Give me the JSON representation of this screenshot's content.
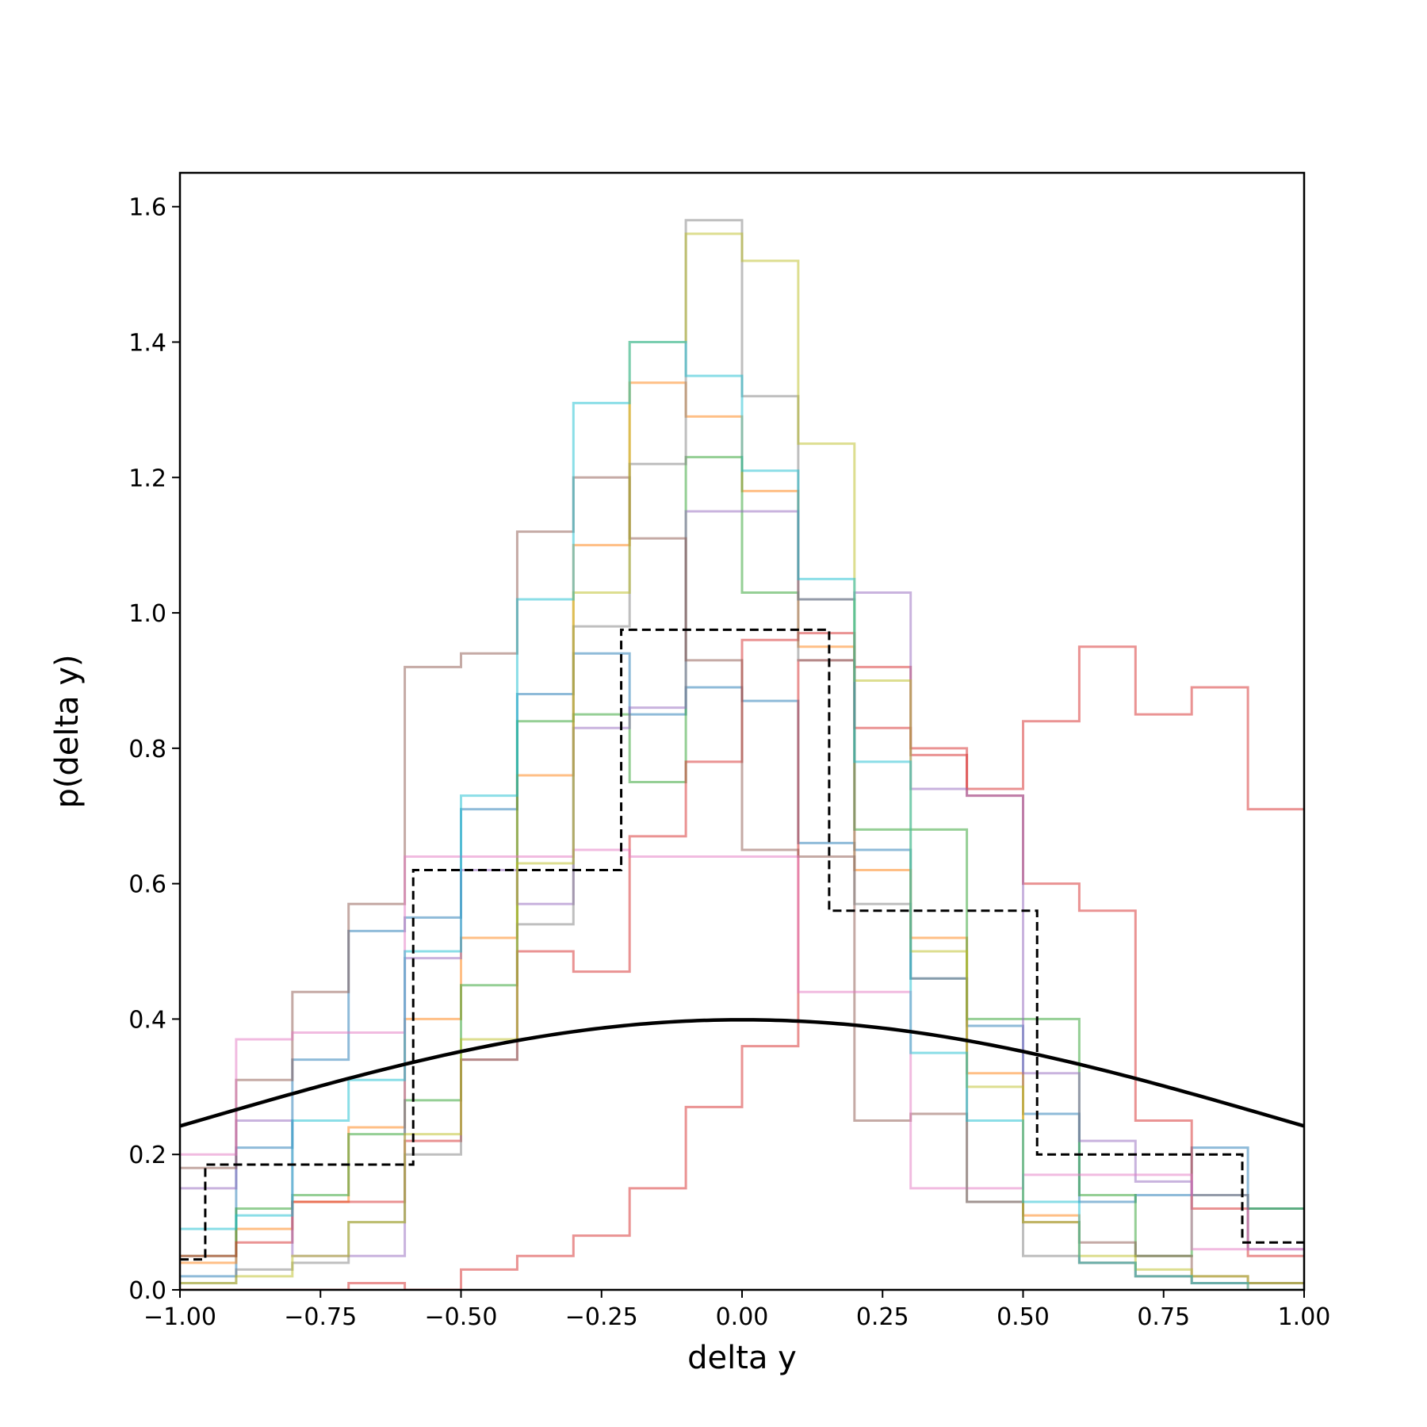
{
  "chart_data": {
    "type": "histogram-step",
    "title": "",
    "xlabel": "delta y",
    "ylabel": "p(delta y)",
    "xlim": [
      -1.0,
      1.0
    ],
    "ylim": [
      0.0,
      1.65
    ],
    "xticks": [
      -1.0,
      -0.75,
      -0.5,
      -0.25,
      0.0,
      0.25,
      0.5,
      0.75,
      1.0
    ],
    "xtick_labels": [
      "−1.00",
      "−0.75",
      "−0.50",
      "−0.25",
      "0.00",
      "0.25",
      "0.50",
      "0.75",
      "1.00"
    ],
    "yticks": [
      0.0,
      0.2,
      0.4,
      0.6,
      0.8,
      1.0,
      1.2,
      1.4,
      1.6
    ],
    "ytick_labels": [
      "0.0",
      "0.2",
      "0.4",
      "0.6",
      "0.8",
      "1.0",
      "1.2",
      "1.4",
      "1.6"
    ],
    "grid": false,
    "legend": "none",
    "curve": {
      "kind": "normal-pdf",
      "mean": 0.0,
      "std": 1.0,
      "color": "#000000"
    },
    "series": [
      {
        "color": "#1f77b4",
        "style": "solid",
        "edges": [
          -1.0,
          -0.9,
          -0.8,
          -0.7,
          -0.6,
          -0.5,
          -0.4,
          -0.3,
          -0.2,
          -0.1,
          0.0,
          0.1,
          0.2,
          0.3,
          0.4,
          0.5,
          0.6,
          0.7,
          0.8,
          0.9,
          1.0
        ],
        "values": [
          0.02,
          0.21,
          0.34,
          0.53,
          0.55,
          0.71,
          0.88,
          0.94,
          0.85,
          0.89,
          0.87,
          0.66,
          0.65,
          0.46,
          0.39,
          0.26,
          0.13,
          0.14,
          0.21,
          0.12
        ]
      },
      {
        "color": "#ff7f0e",
        "style": "solid",
        "edges": [
          -1.0,
          -0.9,
          -0.8,
          -0.7,
          -0.6,
          -0.5,
          -0.4,
          -0.3,
          -0.2,
          -0.1,
          0.0,
          0.1,
          0.2,
          0.3,
          0.4,
          0.5,
          0.6,
          0.7,
          0.8,
          0.9,
          1.0
        ],
        "values": [
          0.04,
          0.09,
          0.13,
          0.24,
          0.4,
          0.52,
          0.76,
          1.1,
          1.34,
          1.29,
          1.18,
          0.95,
          0.62,
          0.52,
          0.32,
          0.11,
          0.04,
          0.02,
          0.01,
          0.0
        ]
      },
      {
        "color": "#2ca02c",
        "style": "solid",
        "edges": [
          -1.0,
          -0.9,
          -0.8,
          -0.7,
          -0.6,
          -0.5,
          -0.4,
          -0.3,
          -0.2,
          -0.1,
          0.0,
          0.1,
          0.2,
          0.3,
          0.4,
          0.5,
          0.6,
          0.7,
          0.8,
          0.9,
          1.0
        ],
        "values": [
          0.05,
          0.12,
          0.14,
          0.23,
          0.28,
          0.45,
          0.84,
          0.85,
          0.75,
          1.23,
          1.03,
          1.02,
          0.68,
          0.68,
          0.4,
          0.4,
          0.14,
          0.05,
          0.14,
          0.12
        ]
      },
      {
        "color": "#d62728",
        "style": "solid",
        "edges": [
          -1.0,
          -0.9,
          -0.8,
          -0.7,
          -0.6,
          -0.5,
          -0.4,
          -0.3,
          -0.2,
          -0.1,
          0.0,
          0.1,
          0.2,
          0.3,
          0.4,
          0.5,
          0.6,
          0.7,
          0.8,
          0.9,
          1.0
        ],
        "values": [
          0.0,
          0.0,
          0.0,
          0.01,
          0.0,
          0.03,
          0.05,
          0.08,
          0.15,
          0.27,
          0.36,
          0.93,
          0.83,
          0.8,
          0.74,
          0.84,
          0.95,
          0.85,
          0.89,
          0.71
        ]
      },
      {
        "color": "#d62728",
        "style": "solid",
        "edges": [
          -1.0,
          -0.9,
          -0.8,
          -0.7,
          -0.6,
          -0.5,
          -0.4,
          -0.3,
          -0.2,
          -0.1,
          0.0,
          0.1,
          0.2,
          0.3,
          0.4,
          0.5,
          0.6,
          0.7,
          0.8,
          0.9,
          1.0
        ],
        "values": [
          0.05,
          0.07,
          0.13,
          0.13,
          0.22,
          0.34,
          0.5,
          0.47,
          0.67,
          0.78,
          0.96,
          0.97,
          0.92,
          0.79,
          0.73,
          0.6,
          0.56,
          0.25,
          0.12,
          0.05
        ]
      },
      {
        "color": "#9467bd",
        "style": "solid",
        "edges": [
          -1.0,
          -0.9,
          -0.8,
          -0.7,
          -0.6,
          -0.5,
          -0.4,
          -0.3,
          -0.2,
          -0.1,
          0.0,
          0.1,
          0.2,
          0.3,
          0.4,
          0.5,
          0.6,
          0.7,
          0.8,
          0.9,
          1.0
        ],
        "values": [
          0.15,
          0.25,
          0.05,
          0.05,
          0.49,
          0.62,
          0.57,
          0.83,
          0.86,
          1.15,
          1.15,
          1.02,
          1.03,
          0.74,
          0.73,
          0.32,
          0.22,
          0.16,
          0.14,
          0.06
        ]
      },
      {
        "color": "#8c564b",
        "style": "solid",
        "edges": [
          -1.0,
          -0.9,
          -0.8,
          -0.7,
          -0.6,
          -0.5,
          -0.4,
          -0.3,
          -0.2,
          -0.1,
          0.0,
          0.1,
          0.2,
          0.3,
          0.4,
          0.5,
          0.6,
          0.7,
          0.8,
          0.9,
          1.0
        ],
        "values": [
          0.18,
          0.31,
          0.44,
          0.57,
          0.92,
          0.94,
          1.12,
          1.2,
          1.11,
          0.93,
          0.65,
          0.64,
          0.25,
          0.26,
          0.13,
          0.1,
          0.07,
          0.05,
          0.02,
          0.01
        ]
      },
      {
        "color": "#e377c2",
        "style": "solid",
        "edges": [
          -1.0,
          -0.9,
          -0.8,
          -0.7,
          -0.6,
          -0.5,
          -0.4,
          -0.3,
          -0.2,
          -0.1,
          0.0,
          0.1,
          0.2,
          0.3,
          0.4,
          0.5,
          0.6,
          0.7,
          0.8,
          0.9,
          1.0
        ],
        "values": [
          0.2,
          0.37,
          0.38,
          0.38,
          0.64,
          0.64,
          0.64,
          0.65,
          0.64,
          0.64,
          0.64,
          0.44,
          0.44,
          0.15,
          0.15,
          0.17,
          0.17,
          0.17,
          0.06,
          0.06
        ]
      },
      {
        "color": "#7f7f7f",
        "style": "solid",
        "edges": [
          -1.0,
          -0.9,
          -0.8,
          -0.7,
          -0.6,
          -0.5,
          -0.4,
          -0.3,
          -0.2,
          -0.1,
          0.0,
          0.1,
          0.2,
          0.3,
          0.4,
          0.5,
          0.6,
          0.7,
          0.8,
          0.9,
          1.0
        ],
        "values": [
          0.01,
          0.03,
          0.04,
          0.1,
          0.2,
          0.34,
          0.54,
          0.98,
          1.22,
          1.58,
          1.32,
          0.93,
          0.57,
          0.46,
          0.13,
          0.05,
          0.04,
          0.02,
          0.01,
          0.01
        ]
      },
      {
        "color": "#bcbd22",
        "style": "solid",
        "edges": [
          -1.0,
          -0.9,
          -0.8,
          -0.7,
          -0.6,
          -0.5,
          -0.4,
          -0.3,
          -0.2,
          -0.1,
          0.0,
          0.1,
          0.2,
          0.3,
          0.4,
          0.5,
          0.6,
          0.7,
          0.8,
          0.9,
          1.0
        ],
        "values": [
          0.01,
          0.02,
          0.05,
          0.1,
          0.23,
          0.37,
          0.63,
          1.03,
          1.4,
          1.56,
          1.52,
          1.25,
          0.9,
          0.5,
          0.3,
          0.1,
          0.05,
          0.03,
          0.02,
          0.01
        ]
      },
      {
        "color": "#17becf",
        "style": "solid",
        "edges": [
          -1.0,
          -0.9,
          -0.8,
          -0.7,
          -0.6,
          -0.5,
          -0.4,
          -0.3,
          -0.2,
          -0.1,
          0.0,
          0.1,
          0.2,
          0.3,
          0.4,
          0.5,
          0.6,
          0.7,
          0.8,
          0.9,
          1.0
        ],
        "values": [
          0.09,
          0.11,
          0.25,
          0.31,
          0.5,
          0.73,
          1.02,
          1.31,
          1.4,
          1.35,
          1.21,
          1.05,
          0.78,
          0.35,
          0.25,
          0.13,
          0.04,
          0.02,
          0.01,
          0.0
        ]
      },
      {
        "color": "#000000",
        "style": "dashed",
        "edges": [
          -1.0,
          -0.955,
          -0.585,
          -0.215,
          0.155,
          0.525,
          0.89,
          1.0
        ],
        "values": [
          0.045,
          0.185,
          0.62,
          0.975,
          0.56,
          0.2,
          0.07
        ]
      }
    ]
  }
}
